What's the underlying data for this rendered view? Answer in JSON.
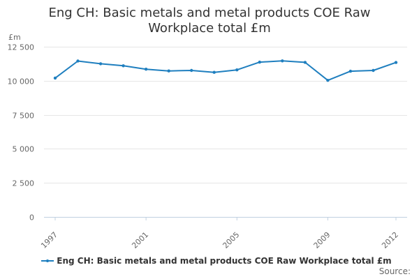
{
  "chart_data": {
    "type": "line",
    "title_lines": [
      "Eng CH: Basic metals and metal products COE Raw",
      "Workplace total £m"
    ],
    "unit_label": "£m",
    "ylim": [
      0,
      12500
    ],
    "yticks": [
      0,
      2500,
      5000,
      7500,
      10000,
      12500
    ],
    "ytick_labels": [
      "0",
      "2 500",
      "5 000",
      "7 500",
      "10 000",
      "12 500"
    ],
    "xlim": [
      1997,
      2012
    ],
    "xtick_labels": [
      "1997",
      "2001",
      "2005",
      "2009",
      "2012"
    ],
    "grid": true,
    "legend_position": "bottom",
    "series": [
      {
        "name": "Eng CH: Basic metals and metal products COE Raw Workplace total £m",
        "color": "#1f7fbf",
        "x": [
          1997,
          1998,
          1999,
          2000,
          2001,
          2002,
          2003,
          2004,
          2005,
          2006,
          2007,
          2008,
          2009,
          2010,
          2011,
          2012
        ],
        "values": [
          10200,
          11450,
          11250,
          11100,
          10850,
          10720,
          10760,
          10620,
          10800,
          11370,
          11460,
          11350,
          10030,
          10700,
          10760,
          11340
        ]
      }
    ]
  },
  "footer": {
    "source": "Source:"
  }
}
